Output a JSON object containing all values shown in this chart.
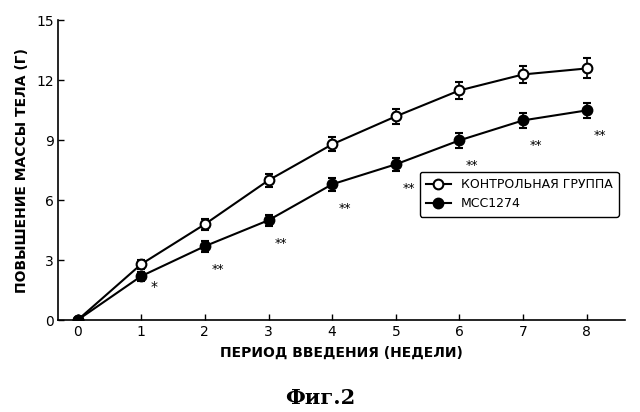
{
  "x": [
    0,
    1,
    2,
    3,
    4,
    5,
    6,
    7,
    8
  ],
  "control_y": [
    0,
    2.8,
    4.8,
    7.0,
    8.8,
    10.2,
    11.5,
    12.3,
    12.6
  ],
  "control_err": [
    0,
    0.22,
    0.28,
    0.32,
    0.35,
    0.38,
    0.42,
    0.42,
    0.5
  ],
  "mcc_y": [
    0,
    2.2,
    3.7,
    5.0,
    6.8,
    7.8,
    9.0,
    10.0,
    10.5
  ],
  "mcc_err": [
    0,
    0.22,
    0.28,
    0.28,
    0.32,
    0.32,
    0.38,
    0.38,
    0.38
  ],
  "xlabel": "ПЕРИОД ВВЕДЕНИЯ (НЕДЕЛИ)",
  "ylabel": "ПОВЫШЕНИЕ МАССЫ ТЕЛА (Г)",
  "ylim": [
    0,
    15
  ],
  "yticks": [
    0,
    3,
    6,
    9,
    12,
    15
  ],
  "xticks": [
    0,
    1,
    2,
    3,
    4,
    5,
    6,
    7,
    8
  ],
  "legend_control": "КОНТРОЛЬНАЯ ГРУППА",
  "legend_mcc": "МСС1274",
  "figure_title": "Фиг.2",
  "sig_single": [
    [
      1,
      "*"
    ]
  ],
  "sig_double": [
    [
      2,
      "**"
    ],
    [
      3,
      "**"
    ],
    [
      4,
      "**"
    ],
    [
      5,
      "**"
    ],
    [
      6,
      "**"
    ],
    [
      7,
      "**"
    ],
    [
      8,
      "**"
    ]
  ],
  "background_color": "#ffffff",
  "line_color": "#000000"
}
